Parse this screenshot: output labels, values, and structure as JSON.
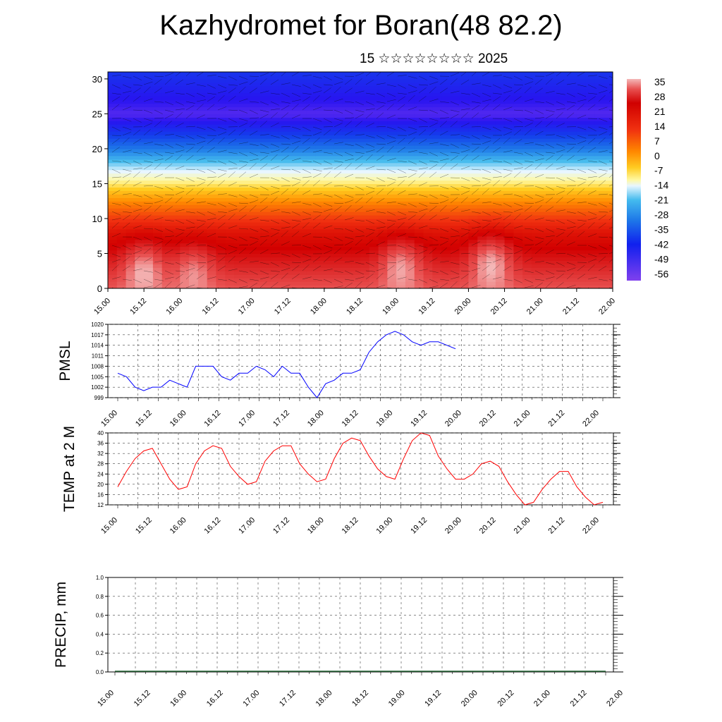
{
  "title": "Kazhydromet for Boran(48 82.2)",
  "subtitle": "15 ☆☆☆☆☆☆☆☆ 2025",
  "chart_data": [
    {
      "type": "heatmap",
      "title": "",
      "ylabel": "",
      "y_ticks": [
        0,
        5,
        10,
        15,
        20,
        25,
        30
      ],
      "ylim": [
        0,
        31
      ],
      "x_ticks": [
        "15.00",
        "15.12",
        "16.00",
        "16.12",
        "17.00",
        "17.12",
        "18.00",
        "18.12",
        "19.00",
        "19.12",
        "20.00",
        "20.12",
        "21.00",
        "21.12",
        "22.00"
      ],
      "colorbar_labels": [
        "35",
        "28",
        "21",
        "14",
        "7",
        "0",
        "-7",
        "-14",
        "-21",
        "-28",
        "-35",
        "-42",
        "-49",
        "-56"
      ],
      "colorbar_range": [
        -60,
        38
      ],
      "isotherm_levels": [
        {
          "level": 0,
          "temp": 32
        },
        {
          "level": 8,
          "temp": 18
        },
        {
          "level": 12,
          "temp": 4
        },
        {
          "level": 15,
          "temp": -8
        },
        {
          "level": 17,
          "temp": -16
        },
        {
          "level": 20,
          "temp": -30
        },
        {
          "level": 23,
          "temp": -45
        },
        {
          "level": 25,
          "temp": -55
        },
        {
          "level": 27,
          "temp": -50
        },
        {
          "level": 31,
          "temp": -42
        }
      ],
      "warm_spots": [
        {
          "x": 3.5,
          "y": 2,
          "temp": 38
        },
        {
          "x": 32,
          "y": 2.5,
          "temp": 37
        },
        {
          "x": 42,
          "y": 3,
          "temp": 38
        },
        {
          "x": 9,
          "y": 1.5,
          "temp": 36
        }
      ]
    },
    {
      "type": "line",
      "ylabel": "PMSL",
      "ylim": [
        999,
        1020
      ],
      "y_ticks": [
        999,
        1002,
        1005,
        1008,
        1011,
        1014,
        1017,
        1020
      ],
      "x_ticks": [
        "15.00",
        "15.12",
        "16.00",
        "16.12",
        "17.00",
        "17.12",
        "18.00",
        "18.12",
        "19.00",
        "19.12",
        "20.00",
        "20.12",
        "21.00",
        "21.12",
        "22.00"
      ],
      "x_start": 0,
      "x_step": 3,
      "color": "#0000ff",
      "values": [
        1006,
        1005,
        1002,
        1001,
        1002,
        1002,
        1004,
        1003,
        1002,
        1008,
        1008,
        1008,
        1005,
        1004,
        1006,
        1006,
        1008,
        1007,
        1005,
        1008,
        1006,
        1006,
        1002,
        999,
        1003,
        1004,
        1006,
        1006,
        1007,
        1012,
        1015,
        1017,
        1018,
        1017,
        1015,
        1014,
        1015,
        1015,
        1014,
        1013
      ]
    },
    {
      "type": "line",
      "ylabel": "TEMP at 2 M",
      "ylim": [
        12,
        40
      ],
      "y_ticks": [
        12,
        16,
        20,
        24,
        28,
        32,
        36,
        40
      ],
      "x_ticks": [
        "15.00",
        "15.12",
        "16.00",
        "16.12",
        "17.00",
        "17.12",
        "18.00",
        "18.12",
        "19.00",
        "19.12",
        "20.00",
        "20.12",
        "21.00",
        "21.12",
        "22.00"
      ],
      "x_start": 0,
      "x_step": 3,
      "color": "#ff0000",
      "values": [
        19,
        25,
        30,
        33,
        34,
        28,
        22,
        18,
        19,
        28,
        33,
        35,
        34,
        27,
        23,
        20,
        21,
        29,
        33,
        35,
        35,
        28,
        24,
        21,
        22,
        30,
        36,
        38,
        37,
        31,
        26,
        23,
        22,
        30,
        37,
        40,
        39,
        31,
        26,
        22,
        22,
        24,
        28,
        29,
        27,
        21,
        16,
        12,
        13,
        18,
        22,
        25,
        25,
        19,
        15,
        12,
        13
      ]
    },
    {
      "type": "bar",
      "ylabel": "PRECIP, mm",
      "ylim": [
        0,
        1
      ],
      "y_ticks": [
        "0.0",
        "0.2",
        "0.4",
        "0.6",
        "0.8",
        "1.0"
      ],
      "x_ticks": [
        "15.00",
        "15.12",
        "16.00",
        "16.12",
        "17.00",
        "17.12",
        "18.00",
        "18.12",
        "19.00",
        "19.12",
        "20.00",
        "20.12",
        "21.00",
        "21.12",
        "22.00"
      ],
      "values": []
    }
  ]
}
